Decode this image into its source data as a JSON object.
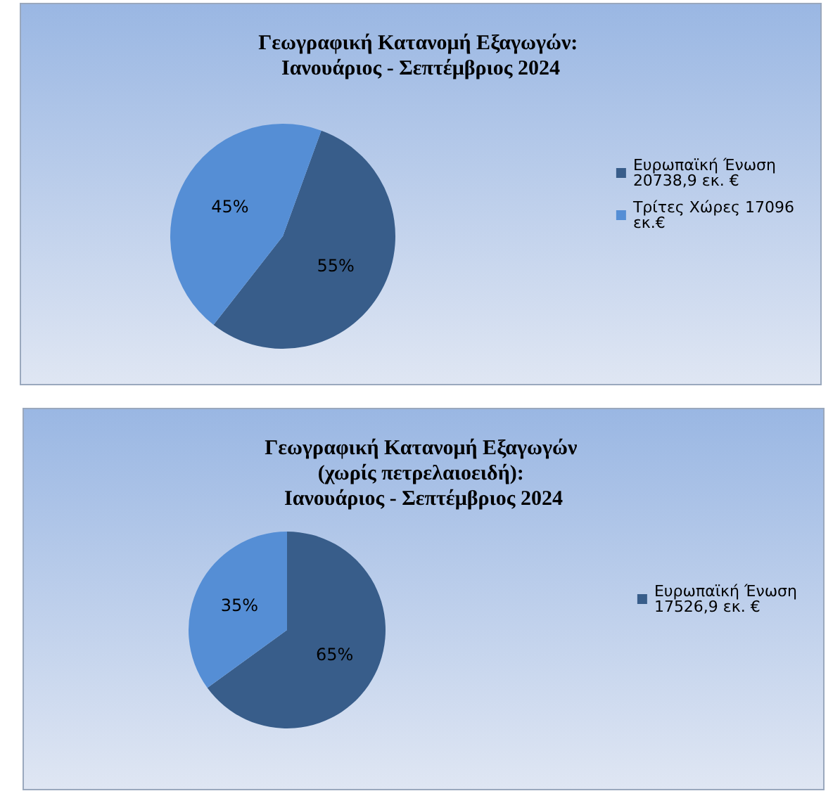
{
  "chart_data": [
    {
      "type": "pie",
      "title": "Γεωγραφική Κατανομή Εξαγωγών: Ιανουάριος - Σεπτέμβριος 2024",
      "categories": [
        "Ευρωπαϊκή Ένωση 20738,9 εκ. €",
        "Τρίτες Χώρες 17096 εκ.€"
      ],
      "values": [
        55,
        45
      ],
      "value_labels": [
        "55%",
        "45%"
      ],
      "colors": [
        "#385d8a",
        "#558ed5"
      ],
      "legend": "right"
    },
    {
      "type": "pie",
      "title": "Γεωγραφική Κατανομή Εξαγωγών (χωρίς πετρελαιοειδή): Ιανουάριος - Σεπτέμβριος 2024",
      "categories": [
        "Ευρωπαϊκή Ένωση 17526,9 εκ. €",
        null
      ],
      "values": [
        65,
        35
      ],
      "value_labels": [
        "65%",
        "35%"
      ],
      "colors": [
        "#385d8a",
        "#558ed5"
      ],
      "legend": "right"
    }
  ]
}
